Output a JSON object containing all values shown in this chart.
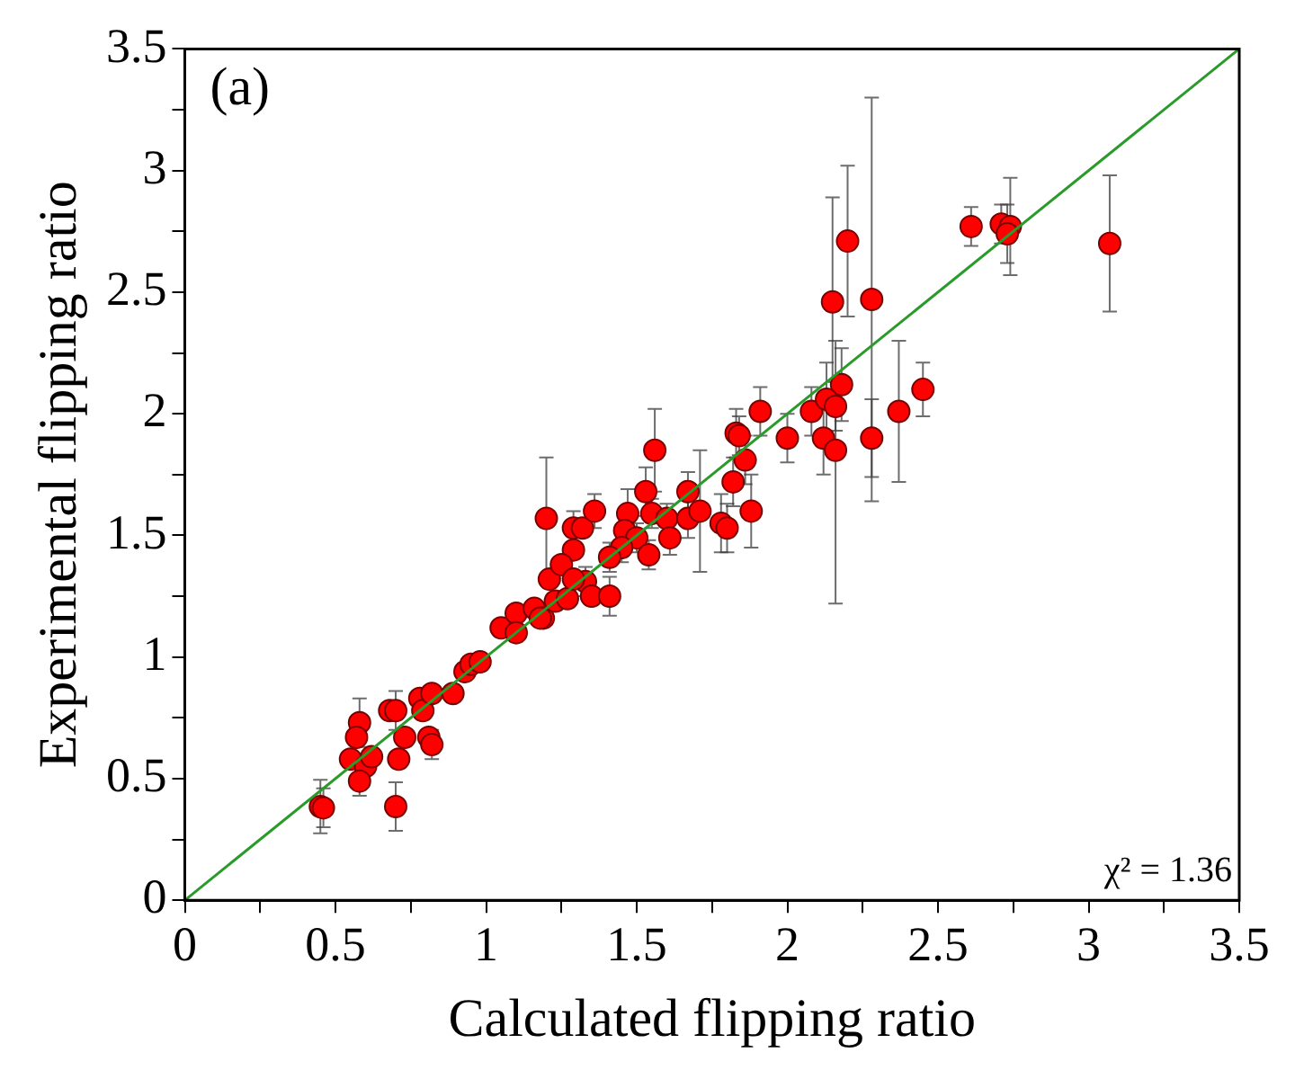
{
  "chart_data": {
    "type": "scatter",
    "xlabel": "Calculated flipping ratio",
    "ylabel": "Experimental flipping ratio",
    "annotations": [
      "(a)",
      "χ² = 1.36"
    ],
    "xlim": [
      0,
      3.5
    ],
    "ylim": [
      0,
      3.5
    ],
    "xticks": [
      0,
      {
        "value": 0.25,
        "label": null
      },
      0.5,
      {
        "value": 0.75,
        "label": null
      },
      1,
      {
        "value": 1.25,
        "label": null
      },
      1.5,
      {
        "value": 1.75,
        "label": null
      },
      2,
      {
        "value": 2.25,
        "label": null
      },
      2.5,
      {
        "value": 2.75,
        "label": null
      },
      3,
      {
        "value": 3.25,
        "label": null
      },
      3.5
    ],
    "yticks": [
      0,
      {
        "value": 0.25,
        "label": null
      },
      0.5,
      {
        "value": 0.75,
        "label": null
      },
      1,
      {
        "value": 1.25,
        "label": null
      },
      1.5,
      {
        "value": 1.75,
        "label": null
      },
      2,
      {
        "value": 2.25,
        "label": null
      },
      2.5,
      {
        "value": 2.75,
        "label": null
      },
      3,
      {
        "value": 3.25,
        "label": null
      },
      3.5
    ],
    "marker": "circle",
    "series": [
      {
        "type": "line",
        "color": "#2a9a2a",
        "marker": "none",
        "x": [
          0,
          3.5
        ],
        "values": [
          0,
          3.5
        ]
      },
      {
        "color": "#ff0000",
        "x": [
          0.45,
          0.46,
          0.58,
          0.57,
          0.55,
          0.6,
          0.58,
          0.62,
          0.68,
          0.7,
          0.7,
          0.71,
          0.73,
          0.78,
          0.79,
          0.81,
          0.82,
          0.82,
          0.89,
          0.93,
          0.95,
          0.98,
          1.05,
          1.1,
          1.1,
          1.16,
          1.19,
          1.21,
          1.23,
          1.27,
          1.33,
          1.35,
          1.41,
          1.2,
          1.29,
          1.32,
          1.36,
          1.47,
          1.53,
          1.56,
          1.55,
          1.6,
          1.61,
          1.67,
          1.67,
          1.71,
          1.78,
          1.8,
          1.82,
          1.83,
          1.86,
          1.88,
          1.91,
          2.0,
          2.08,
          1.46,
          1.5,
          1.54,
          1.45,
          1.41,
          1.29,
          1.25,
          1.29,
          1.18,
          2.61,
          2.71,
          2.74,
          2.73,
          3.07,
          2.2,
          2.15,
          2.28,
          2.28,
          2.18,
          2.13,
          2.16,
          2.12,
          2.16,
          2.37,
          2.45,
          1.84
        ],
        "values": [
          0.385,
          0.38,
          0.73,
          0.67,
          0.58,
          0.55,
          0.49,
          0.59,
          0.78,
          0.78,
          0.385,
          0.58,
          0.67,
          0.83,
          0.78,
          0.67,
          0.64,
          0.85,
          0.85,
          0.94,
          0.97,
          0.98,
          1.12,
          1.18,
          1.1,
          1.2,
          1.16,
          1.32,
          1.23,
          1.24,
          1.31,
          1.25,
          1.25,
          1.57,
          1.53,
          1.53,
          1.6,
          1.59,
          1.68,
          1.85,
          1.59,
          1.57,
          1.49,
          1.68,
          1.57,
          1.6,
          1.55,
          1.53,
          1.72,
          1.92,
          1.81,
          1.6,
          2.01,
          1.9,
          2.01,
          1.52,
          1.49,
          1.42,
          1.45,
          1.41,
          1.44,
          1.38,
          1.32,
          1.16,
          2.77,
          2.78,
          2.77,
          2.74,
          2.7,
          2.71,
          2.46,
          2.47,
          1.9,
          2.12,
          2.06,
          2.03,
          1.9,
          1.85,
          2.01,
          2.1,
          1.91
        ],
        "errors": [
          0.11,
          0.08,
          0.1,
          null,
          null,
          null,
          0.06,
          null,
          null,
          0.08,
          0.1,
          null,
          null,
          null,
          null,
          null,
          0.06,
          null,
          null,
          null,
          null,
          null,
          null,
          null,
          null,
          null,
          null,
          null,
          null,
          null,
          0.06,
          null,
          0.08,
          0.25,
          0.07,
          null,
          0.07,
          0.1,
          0.1,
          0.17,
          0.06,
          0.06,
          0.07,
          0.08,
          0.08,
          0.25,
          0.12,
          0.1,
          0.1,
          0.1,
          0.1,
          0.15,
          0.1,
          0.1,
          0.1,
          null,
          0.06,
          0.06,
          0.06,
          0.06,
          null,
          null,
          null,
          null,
          0.08,
          0.08,
          0.2,
          0.12,
          0.28,
          0.31,
          0.43,
          0.83,
          0.16,
          0.15,
          0.15,
          0.1,
          0.15,
          [
            1.22,
            2.3
          ],
          0.29,
          0.11,
          0.08
        ]
      }
    ]
  }
}
